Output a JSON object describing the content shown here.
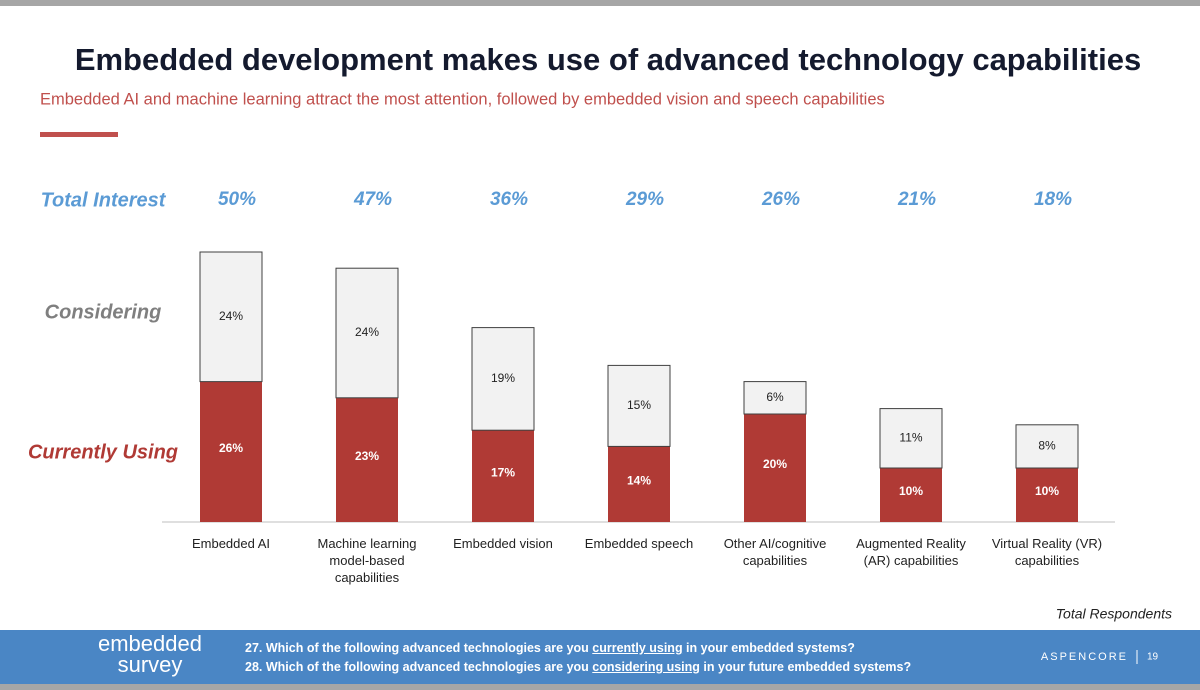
{
  "chart_data": {
    "type": "stacked_bar",
    "title": "Embedded development makes use of advanced technology capabilities",
    "subtitle": "Embedded AI and machine learning attract the most attention, followed by embedded vision and speech capabilities",
    "categories": [
      "Embedded AI",
      "Machine learning model-based capabilities",
      "Embedded vision",
      "Embedded speech",
      "Other AI/cognitive capabilities",
      "Augmented Reality (AR) capabilities",
      "Virtual Reality (VR) capabilities"
    ],
    "series": [
      {
        "name": "Currently Using",
        "color": "#b03a35",
        "values": [
          26,
          23,
          17,
          14,
          20,
          10,
          10
        ],
        "value_labels": [
          "26%",
          "23%",
          "17%",
          "14%",
          "20%",
          "10%",
          "10%"
        ]
      },
      {
        "name": "Considering",
        "color": "#f2f2f2",
        "values": [
          24,
          24,
          19,
          15,
          6,
          11,
          8
        ],
        "value_labels": [
          "24%",
          "24%",
          "19%",
          "15%",
          "6%",
          "11%",
          "8%"
        ]
      }
    ],
    "total_interest": {
      "name": "Total Interest",
      "values": [
        50,
        47,
        36,
        29,
        26,
        21,
        18
      ],
      "value_labels": [
        "50%",
        "47%",
        "36%",
        "29%",
        "26%",
        "21%",
        "18%"
      ]
    },
    "note": "Total Respondents"
  },
  "footer": {
    "logo": [
      "embedded",
      "survey"
    ],
    "questions": [
      [
        "27. Which of the following advanced technologies are you ",
        "currently using",
        " in your embedded systems?"
      ],
      [
        "28. Which of the following advanced technologies are you ",
        "considering using",
        " in your future embedded systems?"
      ]
    ],
    "brand": "ASPENCORE",
    "page": "19"
  }
}
